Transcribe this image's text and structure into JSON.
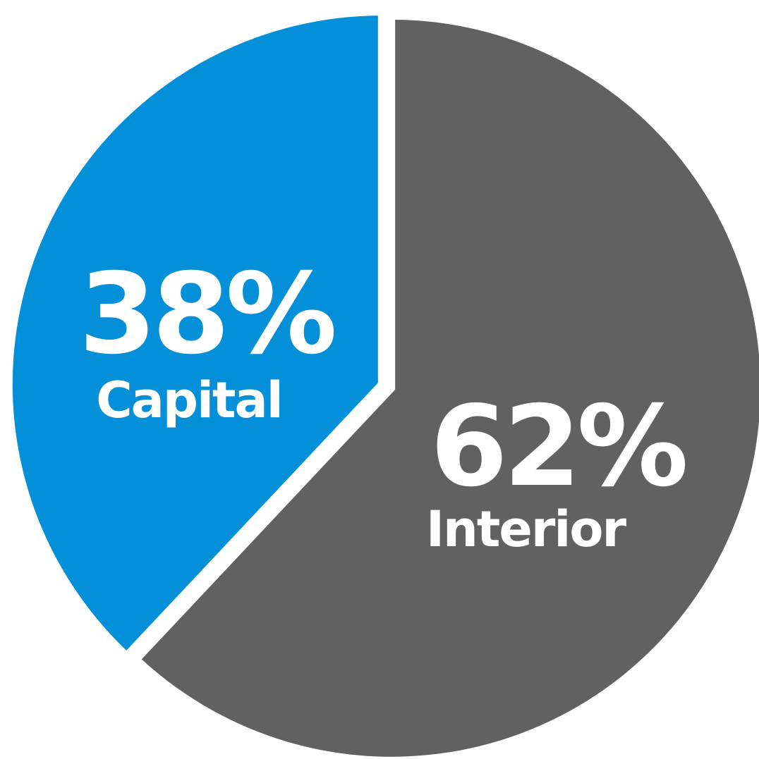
{
  "chart_data": {
    "type": "pie",
    "categories": [
      "Capital",
      "Interior"
    ],
    "values": [
      38,
      62
    ],
    "labels": [
      "38%",
      "62%"
    ],
    "colors": [
      "#0390d8",
      "#616161"
    ],
    "legend": "none"
  }
}
